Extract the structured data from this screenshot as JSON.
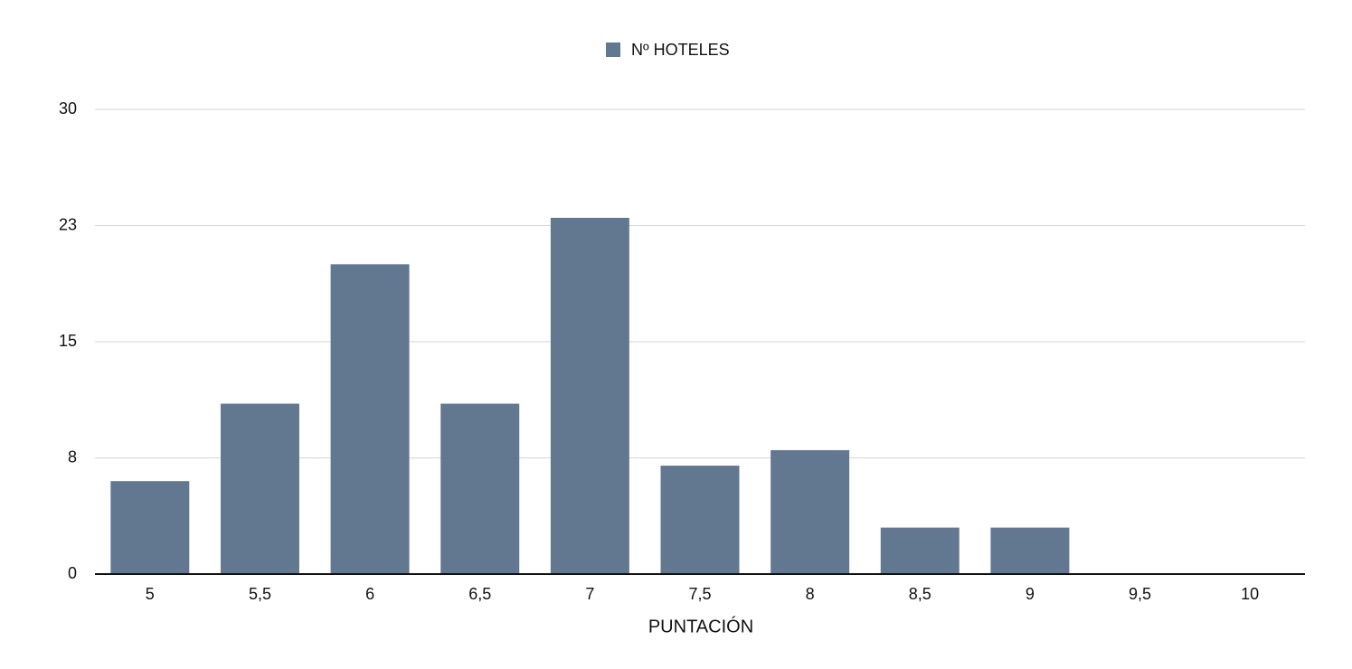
{
  "chart_data": {
    "type": "bar",
    "categories": [
      "5",
      "5,5",
      "6",
      "6,5",
      "7",
      "7,5",
      "8",
      "8,5",
      "9",
      "9,5",
      "10"
    ],
    "series": [
      {
        "name": "Nº HOTELES",
        "color": "#627790",
        "values": [
          6,
          11,
          20,
          11,
          23,
          7,
          8,
          3,
          3,
          0,
          0
        ]
      }
    ],
    "x_label": "PUNTACIÓN",
    "ylim": [
      0,
      30
    ],
    "yticks": [
      0,
      {
        "value": 7.5,
        "label": "8"
      },
      15,
      {
        "value": 22.5,
        "label": "23"
      },
      30
    ],
    "grid": true,
    "legend": "top"
  }
}
